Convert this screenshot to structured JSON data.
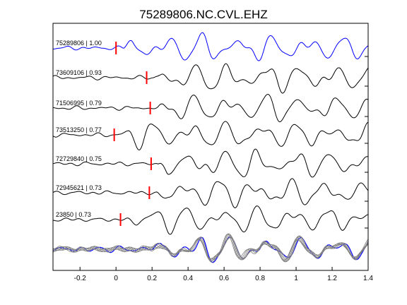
{
  "chart_data": {
    "type": "line",
    "title": "75289806.NC.CVL.EHZ",
    "xlabel": "",
    "ylabel": "",
    "xlim": [
      -0.35,
      1.4
    ],
    "xticks": [
      -0.2,
      0,
      0.2,
      0.4,
      0.6,
      0.8,
      1,
      1.2,
      1.4
    ],
    "xtick_labels": [
      "-0.2",
      "0",
      "0.2",
      "0.4",
      "0.6",
      "0.8",
      "1",
      "1.2",
      "1.4"
    ],
    "grid": false,
    "colors": {
      "reference": "#0000ff",
      "trace": "#000000",
      "stack": "#808080",
      "pick": "#ff0000"
    },
    "series": [
      {
        "name": "75289806 | 1.00",
        "pick": 0.0,
        "reference": true
      },
      {
        "name": "73609106 | 0.93",
        "pick": 0.17
      },
      {
        "name": "71506995 | 0.79",
        "pick": 0.19
      },
      {
        "name": "73513250 | 0.77",
        "pick": -0.01
      },
      {
        "name": "72729840 | 0.75",
        "pick": 0.195
      },
      {
        "name": "72945621 | 0.73",
        "pick": 0.185
      },
      {
        "name": "23850 | 0.73",
        "pick": 0.025
      }
    ],
    "stack_panel": true
  }
}
